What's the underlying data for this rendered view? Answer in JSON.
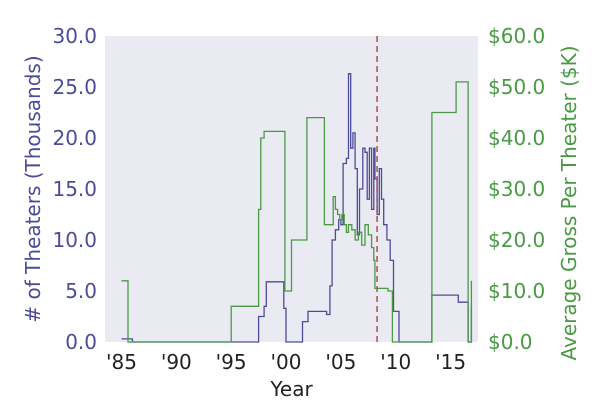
{
  "chart_data": {
    "type": "line",
    "style": "step",
    "title": "",
    "xlabel": "Year",
    "ylabel_left": "# of Theaters (Thousands)",
    "ylabel_right": "Average Gross Per Theater ($K)",
    "xlim": [
      1983.5,
      2017.5
    ],
    "ylim_left": [
      0,
      30
    ],
    "ylim_right": [
      0,
      60
    ],
    "x_ticks": [
      1985,
      1990,
      1995,
      2000,
      2005,
      2010,
      2015
    ],
    "x_tick_labels": [
      "'85",
      "'90",
      "'95",
      "'00",
      "'05",
      "'10",
      "'15"
    ],
    "y_ticks_left": [
      0,
      5,
      10,
      15,
      20,
      25,
      30
    ],
    "y_tick_labels_left": [
      "0.0",
      "5.0",
      "10.0",
      "15.0",
      "20.0",
      "25.0",
      "30.0"
    ],
    "y_ticks_right": [
      0,
      10,
      20,
      30,
      40,
      50,
      60
    ],
    "y_tick_labels_right": [
      "$0.0",
      "$10.0",
      "$20.0",
      "$30.0",
      "$40.0",
      "$50.0",
      "$60.0"
    ],
    "grid": false,
    "vline": {
      "x": 2008.3,
      "style": "dashed"
    },
    "colors": {
      "theaters": "#4c4c99",
      "gross": "#4a9a44",
      "vline": "#b05050",
      "background": "#eaeaf2"
    },
    "series": [
      {
        "axis": "left",
        "x": [
          1985,
          1985.6,
          1986,
          1996,
          1997.5,
          1998,
          1998.2,
          1999.8,
          2000,
          2001.5,
          2002,
          2003.7,
          2004,
          2004.2,
          2004.5,
          2004.8,
          2005,
          2005.2,
          2005.5,
          2005.7,
          2005.9,
          2006.1,
          2006.3,
          2006.5,
          2006.7,
          2007,
          2007.2,
          2007.4,
          2007.6,
          2007.8,
          2008,
          2008.1,
          2008.3,
          2008.5,
          2008.7,
          2008.9,
          2009.2,
          2009.5,
          2009.8,
          2010.3,
          2012.7,
          2013.3,
          2014,
          2015.7,
          2016.6,
          2016.9
        ],
        "values": [
          0.3,
          0.3,
          0,
          0,
          2.5,
          3.5,
          5.9,
          3.3,
          0,
          2,
          3,
          2.7,
          5.5,
          10,
          11,
          12,
          11.5,
          17.5,
          18,
          26.3,
          19,
          20.5,
          17,
          10.5,
          15,
          19,
          18.6,
          14,
          19,
          13,
          19,
          16,
          12.5,
          17,
          14,
          11.5,
          10,
          8,
          3,
          0,
          0,
          4.6,
          4.6,
          3.9,
          0,
          3.5
        ]
      },
      {
        "axis": "right",
        "x": [
          1985,
          1985.6,
          1995,
          1997.5,
          1997.7,
          1998,
          1999.9,
          2000.5,
          2001.9,
          2003.5,
          2004.3,
          2004.5,
          2004.7,
          2004.9,
          2005.1,
          2005.3,
          2005.5,
          2005.7,
          2006.0,
          2006.3,
          2006.6,
          2006.9,
          2007.2,
          2007.5,
          2007.8,
          2008.0,
          2008.1,
          2008.3,
          2009.3,
          2009.7,
          2010.2,
          2012.7,
          2013.3,
          2015.1,
          2015.5,
          2016.6,
          2016.9
        ],
        "values": [
          12,
          0,
          7,
          26,
          40,
          41.3,
          10,
          20,
          44,
          23,
          28.5,
          26,
          25,
          24,
          25,
          23,
          21.5,
          23,
          22,
          20,
          21.5,
          19,
          23,
          21,
          18.5,
          16,
          10.5,
          10.5,
          10,
          0,
          0,
          0,
          45,
          45,
          51,
          0,
          12
        ]
      }
    ]
  }
}
